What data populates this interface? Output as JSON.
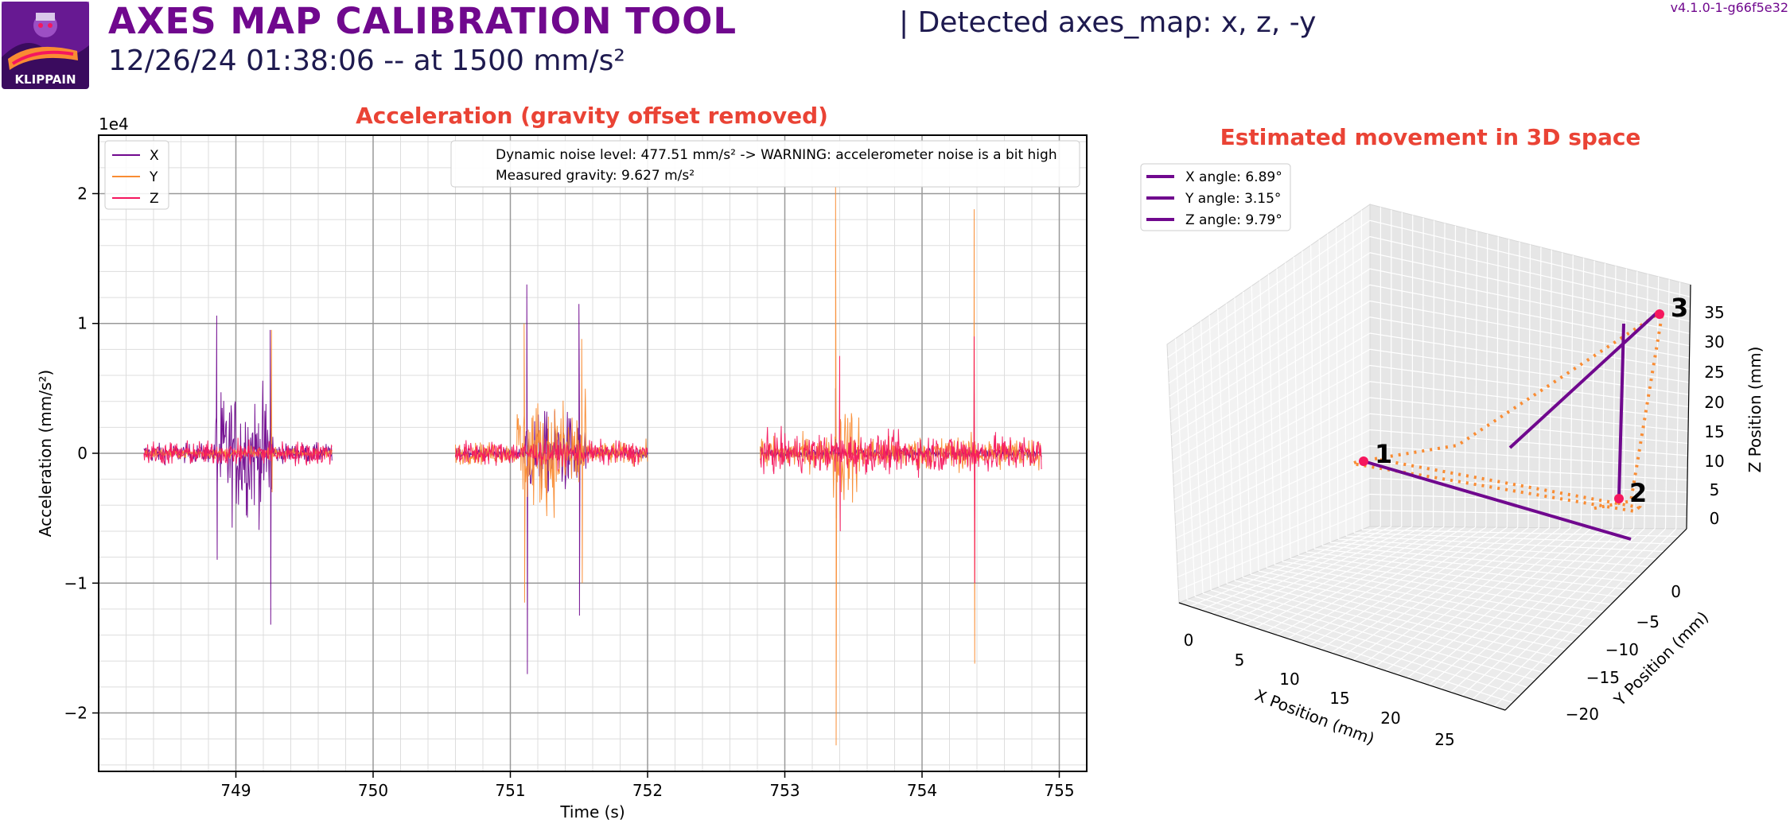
{
  "header": {
    "title": "AXES MAP CALIBRATION TOOL",
    "subtitle": "12/26/24 01:38:06 -- at 1500 mm/s²",
    "detected": "| Detected axes_map: x, z, -y",
    "version": "v4.1.0-1-g66f5e32",
    "logo_text": "KLIPPAIN"
  },
  "colors": {
    "purple": "#70088e",
    "orange": "#f98c33",
    "pink": "#f5175e",
    "title_red": "#ea4335",
    "navy": "#1e1a4f"
  },
  "chart_data": [
    {
      "type": "line",
      "title": "Acceleration (gravity offset removed)",
      "xlabel": "Time (s)",
      "ylabel": "Acceleration (mm/s²)",
      "offset_label": "1e4",
      "xlim": [
        748.0,
        755.2
      ],
      "ylim": [
        -2.45,
        2.45
      ],
      "xticks": [
        749,
        750,
        751,
        752,
        753,
        754,
        755
      ],
      "yticks": [
        -2,
        -1,
        0,
        1,
        2
      ],
      "ytick_labels": [
        "−2",
        "−1",
        "0",
        "1",
        "2"
      ],
      "grid": true,
      "legend_position": "upper-left",
      "series": [
        {
          "name": "X",
          "color": "#70088e",
          "segments": [
            {
              "start": 748.33,
              "end": 749.7,
              "noise": 0.07,
              "bursts": [
                {
                  "start": 748.85,
                  "end": 749.27,
                  "amp": 0.45
                }
              ],
              "spikes": [
                {
                  "t": 748.86,
                  "min": -0.82,
                  "max": 1.06
                },
                {
                  "t": 749.25,
                  "min": -1.32,
                  "max": 0.95
                }
              ]
            },
            {
              "start": 750.6,
              "end": 752.0,
              "noise": 0.04,
              "bursts": [
                {
                  "start": 751.1,
                  "end": 751.55,
                  "amp": 0.3
                }
              ],
              "spikes": [
                {
                  "t": 751.12,
                  "min": -1.7,
                  "max": 1.3
                },
                {
                  "t": 751.5,
                  "min": -1.25,
                  "max": 1.15
                }
              ]
            },
            {
              "start": 752.82,
              "end": 754.87,
              "noise": 0.04,
              "bursts": [],
              "spikes": [
                {
                  "t": 753.37,
                  "min": -0.5,
                  "max": 0.5
                },
                {
                  "t": 754.38,
                  "min": -0.5,
                  "max": 0.5
                }
              ]
            }
          ]
        },
        {
          "name": "Y",
          "color": "#f98c33",
          "segments": [
            {
              "start": 748.33,
              "end": 749.7,
              "noise": 0.04,
              "bursts": [],
              "spikes": [
                {
                  "t": 749.26,
                  "min": -0.3,
                  "max": 0.95
                }
              ]
            },
            {
              "start": 750.6,
              "end": 752.0,
              "noise": 0.08,
              "bursts": [
                {
                  "start": 751.05,
                  "end": 751.55,
                  "amp": 0.4
                }
              ],
              "spikes": [
                {
                  "t": 751.1,
                  "min": -1.15,
                  "max": 1.0
                },
                {
                  "t": 751.52,
                  "min": -1.0,
                  "max": 0.88
                }
              ]
            },
            {
              "start": 752.82,
              "end": 754.87,
              "noise": 0.12,
              "bursts": [
                {
                  "start": 753.35,
                  "end": 753.55,
                  "amp": 0.35
                }
              ],
              "spikes": [
                {
                  "t": 753.37,
                  "min": -2.25,
                  "max": 2.05
                },
                {
                  "t": 754.38,
                  "min": -1.62,
                  "max": 1.88
                }
              ]
            }
          ]
        },
        {
          "name": "Z",
          "color": "#f5175e",
          "segments": [
            {
              "start": 748.33,
              "end": 749.7,
              "noise": 0.09,
              "bursts": [],
              "spikes": []
            },
            {
              "start": 750.6,
              "end": 752.0,
              "noise": 0.09,
              "bursts": [],
              "spikes": []
            },
            {
              "start": 752.82,
              "end": 754.87,
              "noise": 0.14,
              "bursts": [
                {
                  "start": 753.3,
                  "end": 754.4,
                  "amp": 0.1
                }
              ],
              "spikes": [
                {
                  "t": 753.4,
                  "min": -0.6,
                  "max": 0.75
                },
                {
                  "t": 754.38,
                  "min": -1.0,
                  "max": 0.9
                }
              ]
            }
          ]
        }
      ],
      "annotations": [
        "Dynamic noise level: 477.51 mm/s² -> WARNING: accelerometer noise is a bit high",
        "Measured gravity: 9.627 m/s²"
      ]
    },
    {
      "type": "line3d",
      "title": "Estimated movement in 3D space",
      "xlabel": "X Position (mm)",
      "ylabel": "Y Position (mm)",
      "zlabel": "Z Position (mm)",
      "xticks": [
        "0",
        "5",
        "10",
        "15",
        "20",
        "25"
      ],
      "yticks": [
        "0",
        "−5",
        "−10",
        "−15",
        "−20"
      ],
      "zticks": [
        "0",
        "5",
        "10",
        "15",
        "20",
        "25",
        "30",
        "35"
      ],
      "legend_position": "upper-left",
      "series": [
        {
          "name": "X angle: 6.89°",
          "color": "#70088e"
        },
        {
          "name": "Y angle: 3.15°",
          "color": "#70088e"
        },
        {
          "name": "Z angle: 9.79°",
          "color": "#70088e"
        }
      ],
      "points": [
        {
          "label": "1",
          "color": "#f5175e"
        },
        {
          "label": "2",
          "color": "#f5175e"
        },
        {
          "label": "3",
          "color": "#f5175e"
        }
      ]
    }
  ]
}
